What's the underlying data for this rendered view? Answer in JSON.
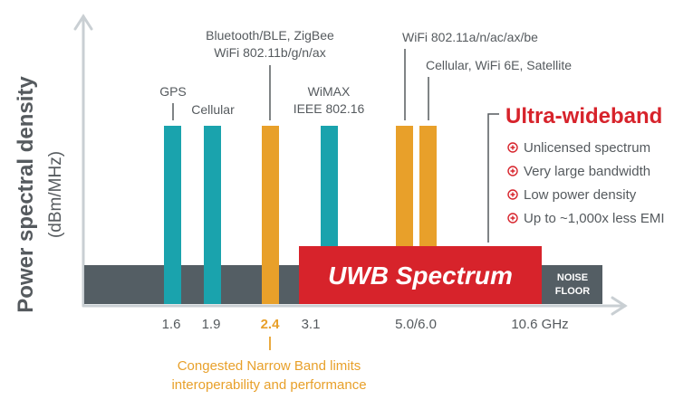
{
  "yaxis": {
    "title": "Power spectral density",
    "unit": "(dBm/MHz)"
  },
  "bands": [
    {
      "label_lines": [
        "GPS"
      ],
      "tick": "1.6",
      "color": "#1aa3ad"
    },
    {
      "label_lines": [
        "Cellular"
      ],
      "tick": "1.9",
      "color": "#1aa3ad"
    },
    {
      "label_lines": [
        "Bluetooth/BLE, ZigBee",
        "WiFi 802.11b/g/n/ax"
      ],
      "tick": "2.4",
      "color": "#e8a02a",
      "tick_highlight": true
    },
    {
      "label_lines": [
        "WiMAX",
        "IEEE 802.16"
      ],
      "tick": "3.1",
      "color": "#1aa3ad"
    },
    {
      "label_lines": [
        "WiFi 802.11a/n/ac/ax/be"
      ],
      "tick": "",
      "color": "#e8a02a"
    },
    {
      "label_lines": [
        "Cellular, WiFi 6E, Satellite"
      ],
      "tick": "",
      "color": "#e8a02a"
    }
  ],
  "ticks": [
    "1.6",
    "1.9",
    "2.4",
    "3.1",
    "5.0/6.0",
    "10.6 GHz"
  ],
  "uwb_label": "UWB Spectrum",
  "noise_floor": [
    "NOISE",
    "FLOOR"
  ],
  "ultra": {
    "title": "Ultra-wideband",
    "bullets": [
      "Unlicensed spectrum",
      "Very large bandwidth",
      "Low power density",
      "Up to ~1,000x less EMI"
    ]
  },
  "congested_note": [
    "Congested Narrow Band limits",
    "interoperability and performance"
  ],
  "colors": {
    "teal": "#1aa3ad",
    "orange": "#e8a02a",
    "red": "#d7232b",
    "noise": "#545e64",
    "axis": "#c9cfd3",
    "text": "#555a5e"
  }
}
